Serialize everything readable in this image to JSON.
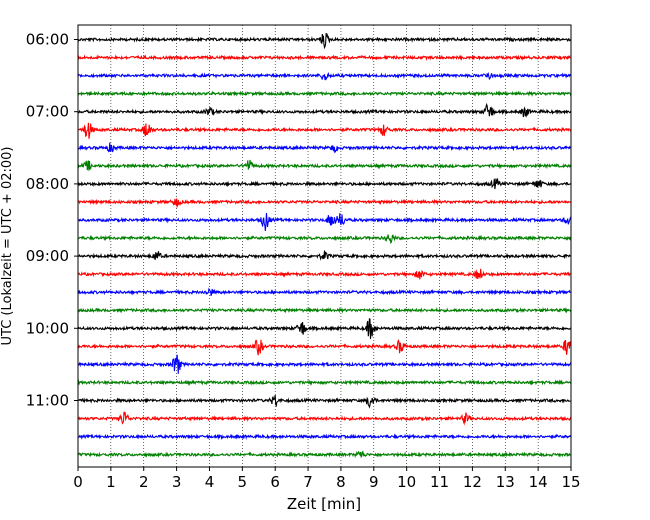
{
  "chart_data": {
    "type": "line",
    "title": "",
    "xlabel": "Zeit  [min]",
    "ylabel": "UTC (Lokalzeit = UTC + 02:00)",
    "xlim": [
      0,
      15
    ],
    "x_ticks": [
      "0",
      "1",
      "2",
      "3",
      "4",
      "5",
      "6",
      "7",
      "8",
      "9",
      "10",
      "11",
      "12",
      "13",
      "14",
      "15"
    ],
    "y_tick_labels": [
      "06:00",
      "07:00",
      "08:00",
      "09:00",
      "10:00",
      "11:00"
    ],
    "y_tick_row_index": [
      0,
      4,
      8,
      12,
      16,
      20
    ],
    "grid": "vertical dotted",
    "row_interval_min": 15,
    "series": [
      {
        "start": "06:00",
        "color": "#000000",
        "events": [
          [
            7.5,
            1.6
          ]
        ]
      },
      {
        "start": "06:15",
        "color": "#ff0000",
        "events": []
      },
      {
        "start": "06:30",
        "color": "#0000ff",
        "events": [
          [
            7.5,
            1.0
          ],
          [
            12.5,
            0.8
          ]
        ]
      },
      {
        "start": "06:45",
        "color": "#008000",
        "events": []
      },
      {
        "start": "07:00",
        "color": "#000000",
        "events": [
          [
            4.0,
            0.9
          ],
          [
            12.5,
            2.0
          ],
          [
            13.6,
            1.1
          ]
        ]
      },
      {
        "start": "07:15",
        "color": "#ff0000",
        "events": [
          [
            0.3,
            2.0
          ],
          [
            2.1,
            1.8
          ],
          [
            9.3,
            1.2
          ]
        ]
      },
      {
        "start": "07:30",
        "color": "#0000ff",
        "events": [
          [
            1.0,
            0.9
          ],
          [
            7.8,
            0.7
          ]
        ]
      },
      {
        "start": "07:45",
        "color": "#008000",
        "events": [
          [
            0.3,
            1.0
          ],
          [
            5.2,
            1.2
          ]
        ]
      },
      {
        "start": "08:00",
        "color": "#000000",
        "events": [
          [
            12.7,
            1.0
          ],
          [
            14.0,
            1.0
          ]
        ]
      },
      {
        "start": "08:15",
        "color": "#ff0000",
        "events": [
          [
            3.0,
            0.8
          ]
        ]
      },
      {
        "start": "08:30",
        "color": "#0000ff",
        "events": [
          [
            5.7,
            2.2
          ],
          [
            7.7,
            1.6
          ],
          [
            8.0,
            1.5
          ],
          [
            14.9,
            0.9
          ]
        ]
      },
      {
        "start": "08:45",
        "color": "#008000",
        "events": [
          [
            9.5,
            1.1
          ]
        ]
      },
      {
        "start": "09:00",
        "color": "#000000",
        "events": [
          [
            2.4,
            1.0
          ],
          [
            7.5,
            1.0
          ]
        ]
      },
      {
        "start": "09:15",
        "color": "#ff0000",
        "events": [
          [
            10.4,
            1.0
          ],
          [
            12.2,
            1.2
          ]
        ]
      },
      {
        "start": "09:30",
        "color": "#0000ff",
        "events": [
          [
            4.0,
            0.8
          ]
        ]
      },
      {
        "start": "09:45",
        "color": "#008000",
        "events": []
      },
      {
        "start": "10:00",
        "color": "#000000",
        "events": [
          [
            6.8,
            1.7
          ],
          [
            8.9,
            2.4
          ]
        ]
      },
      {
        "start": "10:15",
        "color": "#ff0000",
        "events": [
          [
            5.5,
            1.8
          ],
          [
            9.8,
            1.4
          ],
          [
            14.9,
            2.0
          ]
        ]
      },
      {
        "start": "10:30",
        "color": "#0000ff",
        "events": [
          [
            3.0,
            2.4
          ]
        ]
      },
      {
        "start": "10:45",
        "color": "#008000",
        "events": []
      },
      {
        "start": "11:00",
        "color": "#000000",
        "events": [
          [
            6.0,
            1.2
          ],
          [
            8.9,
            1.6
          ]
        ]
      },
      {
        "start": "11:15",
        "color": "#ff0000",
        "events": [
          [
            1.4,
            1.6
          ],
          [
            11.8,
            1.1
          ]
        ]
      },
      {
        "start": "11:30",
        "color": "#0000ff",
        "events": []
      },
      {
        "start": "11:45",
        "color": "#008000",
        "events": [
          [
            8.6,
            0.8
          ]
        ]
      }
    ]
  }
}
